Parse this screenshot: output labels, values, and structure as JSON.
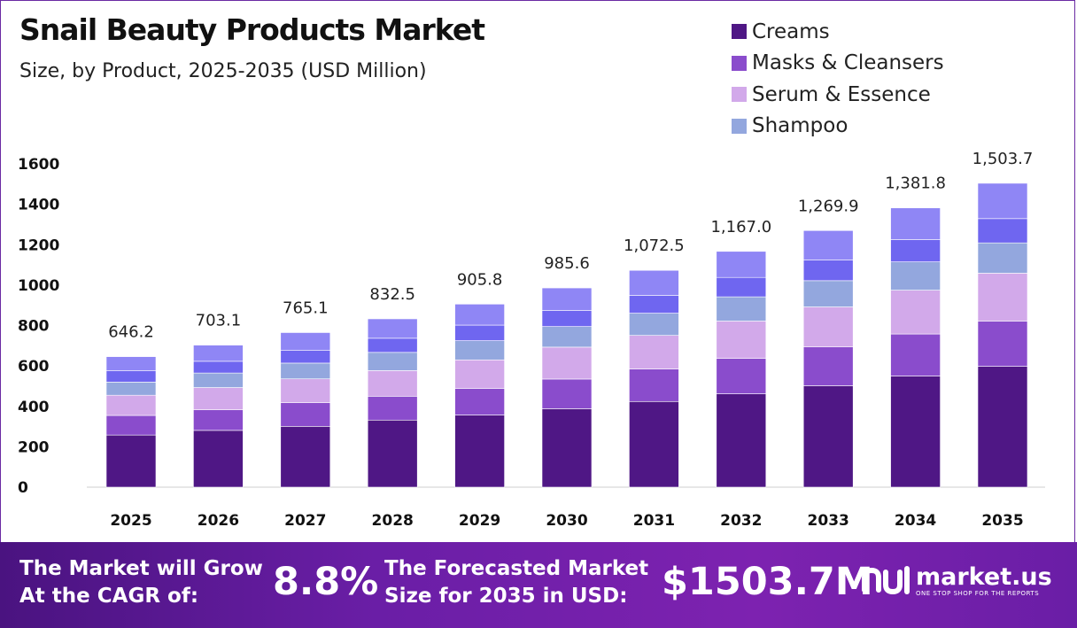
{
  "header": {
    "title": "Snail Beauty Products Market",
    "subtitle": "Size, by Product, 2025-2035 (USD Million)"
  },
  "chart_data": {
    "type": "bar",
    "stacked": true,
    "categories": [
      "2025",
      "2026",
      "2027",
      "2028",
      "2029",
      "2030",
      "2031",
      "2032",
      "2033",
      "2034",
      "2035"
    ],
    "series": [
      {
        "name": "Creams",
        "color": "#4f1785",
        "values": [
          258,
          281,
          301,
          332,
          357,
          388,
          424,
          462,
          502,
          550,
          598
        ]
      },
      {
        "name": "Masks & Cleansers",
        "color": "#8a4ccc",
        "values": [
          97,
          102,
          117,
          118,
          132,
          147,
          161,
          175,
          192,
          208,
          224
        ]
      },
      {
        "name": "Serum & Essence",
        "color": "#d2a9ea",
        "values": [
          100,
          110,
          118,
          127,
          141,
          158,
          166,
          185,
          198,
          217,
          237
        ]
      },
      {
        "name": "Shampoo",
        "color": "#93a7de",
        "values": [
          65,
          72,
          78,
          90,
          95,
          102,
          110,
          120,
          130,
          140,
          150
        ]
      },
      {
        "name": "",
        "color": "#6f66f0",
        "values": [
          56,
          58,
          64,
          70,
          77,
          80,
          88,
          96,
          102,
          110,
          120
        ]
      },
      {
        "name": "",
        "color": "#8f86f5",
        "values": [
          70,
          80,
          87,
          96,
          104,
          111,
          124,
          129,
          146,
          157,
          175
        ]
      }
    ],
    "totals": [
      "646.2",
      "703.1",
      "765.1",
      "832.5",
      "905.8",
      "985.6",
      "1,072.5",
      "1,167.0",
      "1,269.9",
      "1,381.8",
      "1,503.7"
    ],
    "ylim": [
      0,
      1600
    ],
    "yticks": [
      0,
      200,
      400,
      600,
      800,
      1000,
      1200,
      1400,
      1600
    ],
    "xlabel": "",
    "ylabel": "",
    "grid": false,
    "legend": "top-right"
  },
  "footer": {
    "cagr_caption": "The Market will Grow At the CAGR of:",
    "cagr_value": "8.8%",
    "forecast_caption": "The Forecasted Market Size for 2035 in USD:",
    "forecast_value": "$1503.7M",
    "brand_name": "market.us",
    "brand_tagline": "ONE STOP SHOP FOR THE REPORTS",
    "brand_icon": "market-us-logo-icon"
  }
}
